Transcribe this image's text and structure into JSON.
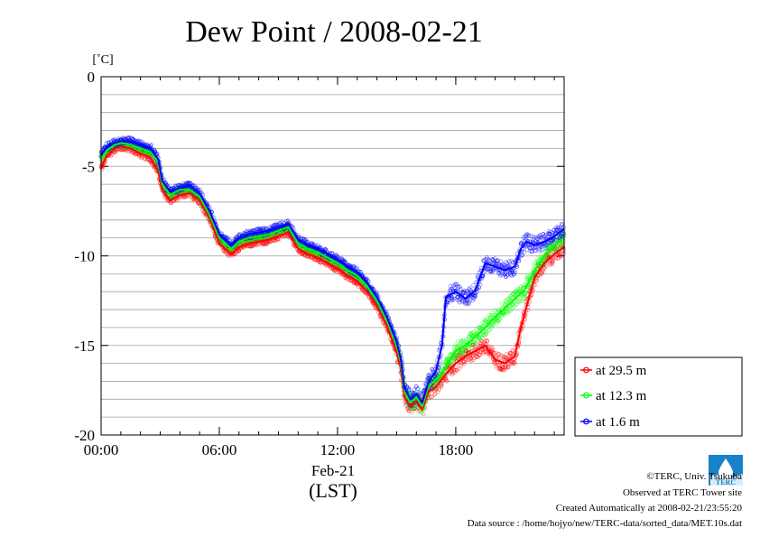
{
  "chart_data": {
    "type": "line",
    "title": "Dew Point / 2008-02-21",
    "ylabel": "[˚C]",
    "xlabel_date": "Feb-21",
    "xlabel_tz": "(LST)",
    "x_unit": "hours (LST)",
    "xlim": [
      0,
      23.5
    ],
    "ylim": [
      -20,
      0
    ],
    "yticks": [
      0,
      -5,
      -10,
      -15,
      -20
    ],
    "ytick_labels": [
      "0",
      "-5",
      "-10",
      "-15",
      "-20"
    ],
    "ygrid_step": 1,
    "xticks": [
      0,
      6,
      12,
      18
    ],
    "xtick_labels": [
      "00:00",
      "06:00",
      "12:00",
      "18:00"
    ],
    "xminor_step": 1,
    "grid": true,
    "legend_position": "right",
    "series": [
      {
        "name": "at 29.5 m",
        "color": "#ff0000",
        "points": [
          [
            0,
            -5.1
          ],
          [
            0.3,
            -4.4
          ],
          [
            0.7,
            -4.0
          ],
          [
            1.0,
            -3.9
          ],
          [
            1.5,
            -4.0
          ],
          [
            2.0,
            -4.3
          ],
          [
            2.5,
            -4.5
          ],
          [
            2.9,
            -5.3
          ],
          [
            3.1,
            -6.3
          ],
          [
            3.5,
            -6.9
          ],
          [
            4.0,
            -6.6
          ],
          [
            4.5,
            -6.5
          ],
          [
            5.0,
            -6.9
          ],
          [
            5.5,
            -7.9
          ],
          [
            6.0,
            -9.3
          ],
          [
            6.3,
            -9.6
          ],
          [
            6.6,
            -9.9
          ],
          [
            7.0,
            -9.5
          ],
          [
            7.5,
            -9.3
          ],
          [
            8.0,
            -9.2
          ],
          [
            8.5,
            -9.1
          ],
          [
            9.0,
            -8.9
          ],
          [
            9.5,
            -8.7
          ],
          [
            10.0,
            -9.6
          ],
          [
            10.5,
            -9.9
          ],
          [
            11.0,
            -10.1
          ],
          [
            11.5,
            -10.4
          ],
          [
            12.0,
            -10.7
          ],
          [
            12.5,
            -11.1
          ],
          [
            13.0,
            -11.4
          ],
          [
            13.5,
            -12.0
          ],
          [
            14.0,
            -12.8
          ],
          [
            14.5,
            -13.9
          ],
          [
            15.0,
            -15.4
          ],
          [
            15.2,
            -16.2
          ],
          [
            15.4,
            -17.9
          ],
          [
            15.7,
            -18.4
          ],
          [
            16.0,
            -18.1
          ],
          [
            16.3,
            -18.6
          ],
          [
            16.6,
            -17.6
          ],
          [
            17.0,
            -17.3
          ],
          [
            17.5,
            -16.6
          ],
          [
            18.0,
            -16.0
          ],
          [
            18.5,
            -15.6
          ],
          [
            19.0,
            -15.3
          ],
          [
            19.5,
            -15.0
          ],
          [
            20.0,
            -15.8
          ],
          [
            20.5,
            -16.0
          ],
          [
            21.0,
            -15.6
          ],
          [
            21.3,
            -14.0
          ],
          [
            21.6,
            -12.8
          ],
          [
            22.0,
            -11.2
          ],
          [
            22.5,
            -10.4
          ],
          [
            23.0,
            -9.9
          ],
          [
            23.5,
            -9.5
          ]
        ]
      },
      {
        "name": "at 12.3 m",
        "color": "#00ff00",
        "points": [
          [
            0,
            -4.6
          ],
          [
            0.3,
            -4.1
          ],
          [
            0.7,
            -3.8
          ],
          [
            1.0,
            -3.7
          ],
          [
            1.5,
            -3.8
          ],
          [
            2.0,
            -4.0
          ],
          [
            2.5,
            -4.2
          ],
          [
            2.9,
            -4.8
          ],
          [
            3.1,
            -6.0
          ],
          [
            3.5,
            -6.6
          ],
          [
            4.0,
            -6.3
          ],
          [
            4.5,
            -6.3
          ],
          [
            5.0,
            -6.7
          ],
          [
            5.5,
            -7.7
          ],
          [
            6.0,
            -9.0
          ],
          [
            6.3,
            -9.3
          ],
          [
            6.6,
            -9.6
          ],
          [
            7.0,
            -9.2
          ],
          [
            7.5,
            -9.0
          ],
          [
            8.0,
            -8.9
          ],
          [
            8.5,
            -8.8
          ],
          [
            9.0,
            -8.6
          ],
          [
            9.5,
            -8.4
          ],
          [
            10.0,
            -9.3
          ],
          [
            10.5,
            -9.6
          ],
          [
            11.0,
            -9.8
          ],
          [
            11.5,
            -10.1
          ],
          [
            12.0,
            -10.4
          ],
          [
            12.5,
            -10.8
          ],
          [
            13.0,
            -11.1
          ],
          [
            13.5,
            -11.7
          ],
          [
            14.0,
            -12.5
          ],
          [
            14.5,
            -13.6
          ],
          [
            15.0,
            -15.0
          ],
          [
            15.2,
            -15.9
          ],
          [
            15.4,
            -17.6
          ],
          [
            15.7,
            -18.2
          ],
          [
            16.0,
            -17.9
          ],
          [
            16.3,
            -18.4
          ],
          [
            16.6,
            -17.3
          ],
          [
            17.0,
            -16.9
          ],
          [
            17.5,
            -16.2
          ],
          [
            18.0,
            -15.3
          ],
          [
            18.5,
            -15.0
          ],
          [
            19.0,
            -14.5
          ],
          [
            19.5,
            -14.0
          ],
          [
            20.0,
            -13.4
          ],
          [
            20.5,
            -12.9
          ],
          [
            21.0,
            -12.4
          ],
          [
            21.5,
            -11.9
          ],
          [
            22.0,
            -10.8
          ],
          [
            22.5,
            -10.0
          ],
          [
            23.0,
            -9.4
          ],
          [
            23.5,
            -9.0
          ]
        ]
      },
      {
        "name": "at 1.6 m",
        "color": "#0000ff",
        "points": [
          [
            0,
            -4.4
          ],
          [
            0.3,
            -3.9
          ],
          [
            0.7,
            -3.7
          ],
          [
            1.0,
            -3.6
          ],
          [
            1.5,
            -3.6
          ],
          [
            2.0,
            -3.8
          ],
          [
            2.5,
            -4.0
          ],
          [
            2.9,
            -4.6
          ],
          [
            3.1,
            -5.8
          ],
          [
            3.5,
            -6.4
          ],
          [
            4.0,
            -6.2
          ],
          [
            4.5,
            -6.1
          ],
          [
            5.0,
            -6.5
          ],
          [
            5.5,
            -7.5
          ],
          [
            6.0,
            -8.8
          ],
          [
            6.3,
            -9.1
          ],
          [
            6.6,
            -9.4
          ],
          [
            7.0,
            -9.0
          ],
          [
            7.5,
            -8.8
          ],
          [
            8.0,
            -8.7
          ],
          [
            8.5,
            -8.6
          ],
          [
            9.0,
            -8.4
          ],
          [
            9.5,
            -8.2
          ],
          [
            10.0,
            -9.1
          ],
          [
            10.5,
            -9.4
          ],
          [
            11.0,
            -9.6
          ],
          [
            11.5,
            -9.9
          ],
          [
            12.0,
            -10.2
          ],
          [
            12.5,
            -10.6
          ],
          [
            13.0,
            -10.9
          ],
          [
            13.5,
            -11.5
          ],
          [
            14.0,
            -12.3
          ],
          [
            14.5,
            -13.4
          ],
          [
            15.0,
            -14.8
          ],
          [
            15.2,
            -15.7
          ],
          [
            15.4,
            -17.4
          ],
          [
            15.7,
            -18.0
          ],
          [
            16.0,
            -17.7
          ],
          [
            16.3,
            -18.2
          ],
          [
            16.6,
            -17.1
          ],
          [
            17.0,
            -16.4
          ],
          [
            17.3,
            -15.0
          ],
          [
            17.5,
            -12.3
          ],
          [
            18.0,
            -12.0
          ],
          [
            18.5,
            -12.4
          ],
          [
            19.0,
            -11.9
          ],
          [
            19.5,
            -10.4
          ],
          [
            20.0,
            -10.6
          ],
          [
            20.5,
            -10.8
          ],
          [
            21.0,
            -10.6
          ],
          [
            21.3,
            -9.6
          ],
          [
            21.6,
            -9.2
          ],
          [
            22.0,
            -9.4
          ],
          [
            22.5,
            -9.2
          ],
          [
            23.0,
            -8.9
          ],
          [
            23.5,
            -8.5
          ]
        ]
      }
    ]
  },
  "footer": {
    "copyright": "©TERC, Univ. Tsukuba",
    "observed": "Observed at TERC Tower site",
    "created": "Created Automatically at 2008-02-21/23:55:20",
    "source": "Data source : /home/hojyo/new/TERC-data/sorted_data/MET.10s.dat"
  },
  "logo": {
    "text": "TERC",
    "color": "#1a82c8"
  }
}
